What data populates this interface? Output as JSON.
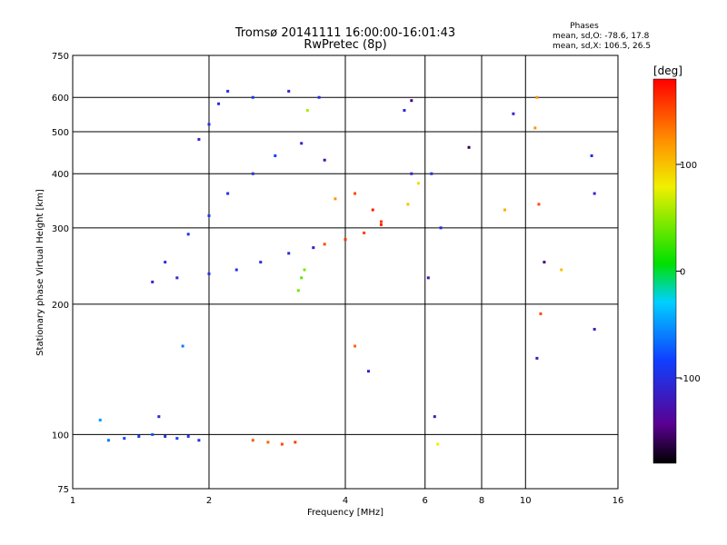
{
  "chart_data": {
    "type": "scatter",
    "title": "Tromsø 20141111 16:00:00-16:01:43",
    "subtitle": "RwPretec (8p)",
    "info": {
      "heading": "Phases",
      "line1": "mean, sd,O: -78.6, 17.8",
      "line2": "mean, sd,X: 106.5, 26.5"
    },
    "xlabel": "Frequency [MHz]",
    "ylabel": "Stationary phase Virtual Height [km]",
    "x_scale": "log",
    "y_scale": "log",
    "xlim": [
      1,
      16
    ],
    "ylim": [
      75,
      750
    ],
    "x_ticks": [
      1,
      2,
      4,
      6,
      8,
      10,
      16
    ],
    "y_ticks": [
      75,
      100,
      200,
      300,
      400,
      500,
      600,
      750
    ],
    "x_gridlines": [
      2,
      4,
      6,
      8,
      10
    ],
    "y_gridlines": [
      100,
      200,
      300,
      400,
      500,
      600
    ],
    "colorbar": {
      "label": "[deg]",
      "range": [
        -180,
        180
      ],
      "ticks": [
        100,
        0,
        -100
      ],
      "colormap": "rainbow (black→purple→blue→cyan→green→yellow→red)"
    },
    "points": [
      {
        "f": 1.2,
        "h": 97,
        "p": -60
      },
      {
        "f": 1.3,
        "h": 98,
        "p": -80
      },
      {
        "f": 1.4,
        "h": 99,
        "p": -90
      },
      {
        "f": 1.5,
        "h": 100,
        "p": -75
      },
      {
        "f": 1.6,
        "h": 99,
        "p": -95
      },
      {
        "f": 1.7,
        "h": 98,
        "p": -85
      },
      {
        "f": 1.8,
        "h": 99,
        "p": -90
      },
      {
        "f": 1.9,
        "h": 97,
        "p": -100
      },
      {
        "f": 1.15,
        "h": 108,
        "p": -50
      },
      {
        "f": 1.55,
        "h": 110,
        "p": -105
      },
      {
        "f": 1.75,
        "h": 160,
        "p": -60
      },
      {
        "f": 2.5,
        "h": 97,
        "p": 145
      },
      {
        "f": 2.7,
        "h": 96,
        "p": 140
      },
      {
        "f": 2.9,
        "h": 95,
        "p": 150
      },
      {
        "f": 3.1,
        "h": 96,
        "p": 155
      },
      {
        "f": 1.5,
        "h": 225,
        "p": -110
      },
      {
        "f": 1.7,
        "h": 230,
        "p": -105
      },
      {
        "f": 2.0,
        "h": 235,
        "p": -100
      },
      {
        "f": 2.3,
        "h": 240,
        "p": -95
      },
      {
        "f": 2.6,
        "h": 250,
        "p": -100
      },
      {
        "f": 3.0,
        "h": 262,
        "p": -105
      },
      {
        "f": 3.4,
        "h": 270,
        "p": -120
      },
      {
        "f": 3.6,
        "h": 275,
        "p": 150
      },
      {
        "f": 4.0,
        "h": 282,
        "p": 160
      },
      {
        "f": 4.4,
        "h": 292,
        "p": 155
      },
      {
        "f": 4.8,
        "h": 305,
        "p": 165
      },
      {
        "f": 1.6,
        "h": 250,
        "p": -100
      },
      {
        "f": 1.8,
        "h": 290,
        "p": -95
      },
      {
        "f": 2.0,
        "h": 320,
        "p": -90
      },
      {
        "f": 2.2,
        "h": 360,
        "p": -100
      },
      {
        "f": 2.5,
        "h": 400,
        "p": -95
      },
      {
        "f": 2.8,
        "h": 440,
        "p": -85
      },
      {
        "f": 3.2,
        "h": 470,
        "p": -110
      },
      {
        "f": 3.6,
        "h": 430,
        "p": -130
      },
      {
        "f": 3.8,
        "h": 350,
        "p": 120
      },
      {
        "f": 4.2,
        "h": 360,
        "p": 150
      },
      {
        "f": 4.6,
        "h": 330,
        "p": 170
      },
      {
        "f": 5.5,
        "h": 340,
        "p": 100
      },
      {
        "f": 5.8,
        "h": 380,
        "p": 90
      },
      {
        "f": 5.6,
        "h": 400,
        "p": -110
      },
      {
        "f": 1.9,
        "h": 480,
        "p": -110
      },
      {
        "f": 2.0,
        "h": 520,
        "p": -100
      },
      {
        "f": 2.1,
        "h": 580,
        "p": -105
      },
      {
        "f": 2.2,
        "h": 620,
        "p": -95
      },
      {
        "f": 2.5,
        "h": 600,
        "p": -90
      },
      {
        "f": 3.0,
        "h": 620,
        "p": -110
      },
      {
        "f": 3.3,
        "h": 560,
        "p": 60
      },
      {
        "f": 3.5,
        "h": 600,
        "p": -100
      },
      {
        "f": 3.15,
        "h": 215,
        "p": 40
      },
      {
        "f": 3.2,
        "h": 230,
        "p": 35
      },
      {
        "f": 3.25,
        "h": 240,
        "p": 45
      },
      {
        "f": 5.4,
        "h": 560,
        "p": -110
      },
      {
        "f": 5.6,
        "h": 590,
        "p": -150
      },
      {
        "f": 4.8,
        "h": 310,
        "p": 160
      },
      {
        "f": 6.2,
        "h": 400,
        "p": -100
      },
      {
        "f": 6.5,
        "h": 300,
        "p": -105
      },
      {
        "f": 7.5,
        "h": 460,
        "p": -160
      },
      {
        "f": 9.0,
        "h": 330,
        "p": 110
      },
      {
        "f": 10.5,
        "h": 510,
        "p": 120
      },
      {
        "f": 10.7,
        "h": 340,
        "p": 150
      },
      {
        "f": 11.0,
        "h": 250,
        "p": -150
      },
      {
        "f": 14.2,
        "h": 360,
        "p": -110
      },
      {
        "f": 14.0,
        "h": 440,
        "p": -100
      },
      {
        "f": 10.6,
        "h": 150,
        "p": -120
      },
      {
        "f": 10.8,
        "h": 190,
        "p": 150
      },
      {
        "f": 4.2,
        "h": 160,
        "p": 140
      },
      {
        "f": 4.5,
        "h": 140,
        "p": -110
      },
      {
        "f": 6.3,
        "h": 110,
        "p": -120
      },
      {
        "f": 6.4,
        "h": 95,
        "p": 80
      },
      {
        "f": 6.1,
        "h": 230,
        "p": -130
      },
      {
        "f": 10.6,
        "h": 600,
        "p": 120
      },
      {
        "f": 9.4,
        "h": 550,
        "p": -110
      },
      {
        "f": 14.2,
        "h": 175,
        "p": -110
      },
      {
        "f": 12.0,
        "h": 240,
        "p": 100
      }
    ]
  }
}
